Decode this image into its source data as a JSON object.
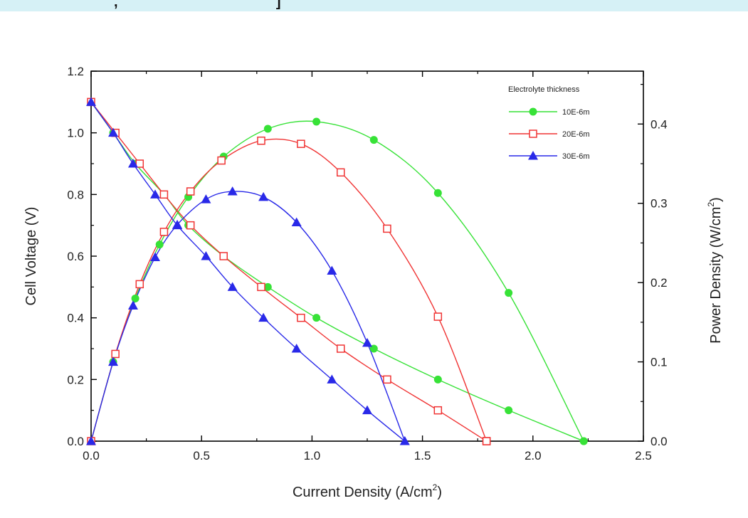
{
  "colors": {
    "green": "#37e237",
    "red": "#f03434",
    "blue": "#2929e8",
    "axis": "#000000"
  },
  "chart_data": {
    "type": "line",
    "title": "",
    "xlabel": "Current Density (A/cm",
    "xlabel_sup": "2",
    "xlabel_end": ")",
    "ylabel": "Cell Voltage (V)",
    "y2label": "Power Density (W/cm",
    "y2label_sup": "2",
    "y2label_end": ")",
    "xlim": [
      0,
      2.5
    ],
    "ylim": [
      0,
      1.2
    ],
    "y2lim": [
      0,
      0.4667
    ],
    "xticks": [
      "0.0",
      "0.5",
      "1.0",
      "1.5",
      "2.0",
      "2.5"
    ],
    "yticks": [
      "0.0",
      "0.2",
      "0.4",
      "0.6",
      "0.8",
      "1.0",
      "1.2"
    ],
    "y2ticks": [
      "0.0",
      "0.1",
      "0.2",
      "0.3",
      "0.4"
    ],
    "grid": false,
    "legend": {
      "title": "Electrolyte thickness",
      "placement": "top-right"
    },
    "series": [
      {
        "name": "10E-6m",
        "color": "green",
        "marker": "circle",
        "voltage": {
          "x": [
            0,
            0.1,
            0.2,
            0.33,
            0.44,
            0.6,
            0.8,
            1.02,
            1.28,
            1.57,
            1.89,
            2.23
          ],
          "y": [
            1.1,
            1.0,
            0.9,
            0.8,
            0.7,
            0.6,
            0.5,
            0.4,
            0.3,
            0.2,
            0.1,
            0.0
          ]
        },
        "power": {
          "x": [
            0,
            0.1,
            0.2,
            0.31,
            0.44,
            0.6,
            0.8,
            1.02,
            1.28,
            1.57,
            1.89,
            2.23
          ],
          "y": [
            0,
            0.1,
            0.18,
            0.248,
            0.308,
            0.359,
            0.394,
            0.403,
            0.38,
            0.313,
            0.187,
            0.0
          ]
        }
      },
      {
        "name": "20E-6m",
        "color": "red",
        "marker": "square",
        "voltage": {
          "x": [
            0,
            0.11,
            0.22,
            0.33,
            0.45,
            0.6,
            0.77,
            0.95,
            1.13,
            1.34,
            1.57,
            1.79
          ],
          "y": [
            1.1,
            1.0,
            0.9,
            0.8,
            0.7,
            0.6,
            0.5,
            0.4,
            0.3,
            0.2,
            0.1,
            0.0
          ]
        },
        "power": {
          "x": [
            0,
            0.11,
            0.22,
            0.33,
            0.45,
            0.59,
            0.77,
            0.95,
            1.13,
            1.34,
            1.57,
            1.79
          ],
          "y": [
            0,
            0.11,
            0.198,
            0.264,
            0.315,
            0.354,
            0.379,
            0.375,
            0.339,
            0.268,
            0.157,
            0.0
          ]
        }
      },
      {
        "name": "30E-6m",
        "color": "blue",
        "marker": "triangle",
        "voltage": {
          "x": [
            0,
            0.1,
            0.19,
            0.29,
            0.39,
            0.52,
            0.64,
            0.78,
            0.93,
            1.09,
            1.25,
            1.42
          ],
          "y": [
            1.1,
            1.0,
            0.9,
            0.8,
            0.7,
            0.6,
            0.5,
            0.4,
            0.3,
            0.2,
            0.1,
            0.0
          ]
        },
        "power": {
          "x": [
            0,
            0.1,
            0.19,
            0.29,
            0.39,
            0.52,
            0.64,
            0.78,
            0.93,
            1.09,
            1.25,
            1.42
          ],
          "y": [
            0,
            0.1,
            0.171,
            0.232,
            0.273,
            0.305,
            0.315,
            0.308,
            0.276,
            0.215,
            0.124,
            0.0
          ]
        }
      }
    ]
  }
}
